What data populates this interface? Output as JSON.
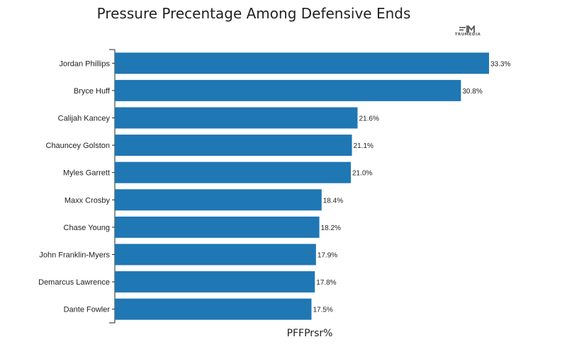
{
  "chart_data": {
    "type": "bar",
    "orientation": "horizontal",
    "title": "Pressure Precentage Among Defensive Ends",
    "xlabel": "PFFPrsr%",
    "ylabel": "",
    "categories": [
      "Jordan Phillips",
      "Bryce Huff",
      "Calijah Kancey",
      "Chauncey Golston",
      "Myles Garrett",
      "Maxx Crosby",
      "Chase Young",
      "John Franklin-Myers",
      "Demarcus Lawrence",
      "Dante Fowler"
    ],
    "values": [
      33.3,
      30.8,
      21.6,
      21.1,
      21.0,
      18.4,
      18.2,
      17.9,
      17.8,
      17.5
    ],
    "value_labels": [
      "33.3%",
      "30.8%",
      "21.6%",
      "21.1%",
      "21.0%",
      "18.4%",
      "18.2%",
      "17.9%",
      "17.8%",
      "17.5%"
    ],
    "xlim": [
      0,
      33.3
    ],
    "grid": false,
    "legend": "none",
    "bar_color": "#1f77b4"
  },
  "logo": {
    "text": "TRUMEDIA",
    "icon": "trumedia-logo-icon"
  }
}
